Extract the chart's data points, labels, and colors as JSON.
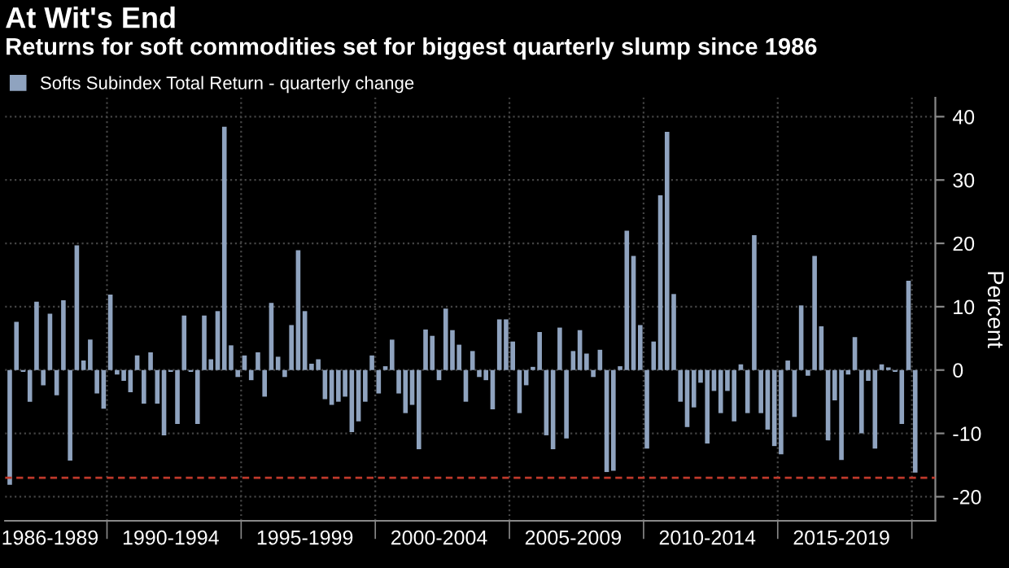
{
  "chart_data": {
    "type": "bar",
    "title": "At Wit's End",
    "subtitle": "Returns for soft commodities set for biggest quarterly slump since 1986",
    "ylabel": "Percent",
    "categories": [
      null,
      null,
      null,
      null,
      null,
      null,
      "1986-1989",
      null,
      null,
      null,
      null,
      null,
      null,
      null,
      null,
      null,
      null,
      null,
      null,
      null,
      null,
      null,
      null,
      null,
      "1990-1994",
      null,
      null,
      null,
      null,
      null,
      null,
      null,
      null,
      null,
      null,
      null,
      null,
      null,
      null,
      null,
      null,
      null,
      null,
      null,
      "1995-1999",
      null,
      null,
      null,
      null,
      null,
      null,
      null,
      null,
      null,
      null,
      null,
      null,
      null,
      null,
      null,
      null,
      null,
      null,
      null,
      "2000-2004",
      null,
      null,
      null,
      null,
      null,
      null,
      null,
      null,
      null,
      null,
      null,
      null,
      null,
      null,
      null,
      null,
      null,
      null,
      null,
      "2005-2009",
      null,
      null,
      null,
      null,
      null,
      null,
      null,
      null,
      null,
      null,
      null,
      null,
      null,
      null,
      null,
      null,
      null,
      null,
      null,
      "2010-2014",
      null,
      null,
      null,
      null,
      null,
      null,
      null,
      null,
      null,
      null,
      null,
      null,
      null,
      null,
      null,
      null,
      null,
      null,
      null,
      "2015-2019",
      null,
      null,
      null,
      null,
      null,
      null,
      null,
      null,
      null,
      null,
      null
    ],
    "series": [
      {
        "name": "Softs Subindex Total Return - quarterly change",
        "color": "#8fa3bf",
        "values": [
          -18.1,
          7.6,
          -0.3,
          -5,
          10.8,
          -2.4,
          8.9,
          -4,
          11,
          -14.3,
          19.7,
          1.5,
          4.8,
          -3.7,
          -6.1,
          11.9,
          -0.7,
          -1.7,
          -3.5,
          2.3,
          -5.3,
          2.8,
          -5.3,
          -10.3,
          -0.3,
          -8.5,
          8.6,
          -0.3,
          -8.5,
          8.6,
          1.7,
          9.3,
          38.4,
          3.9,
          -1.1,
          2.3,
          -1.6,
          2.8,
          -4.2,
          10.6,
          2.1,
          -1.1,
          7.1,
          18.9,
          9.3,
          1.0,
          1.7,
          -4.6,
          -5.5,
          -5,
          -4.2,
          -9.8,
          -8.1,
          -5,
          2.3,
          -3.7,
          0.6,
          4.8,
          -3.7,
          -6.8,
          -5.5,
          -12.5,
          6.4,
          5.4,
          -1.6,
          9.7,
          6.3,
          4,
          -5,
          3,
          -1.1,
          -1.6,
          -6.2,
          8.0,
          8.0,
          4.5,
          -6.8,
          -2.4,
          0.5,
          6,
          -10.3,
          -12.5,
          6.7,
          -10.8,
          3,
          6.3,
          2.6,
          -1.1,
          3.2,
          -16.1,
          -15.9,
          0.6,
          22,
          18,
          7.1,
          -12.4,
          4.5,
          27.6,
          37.6,
          12,
          -5,
          -9,
          -5.9,
          -2,
          -11.6,
          -3.3,
          -6.8,
          -3.3,
          -8.1,
          0.9,
          -6.8,
          21.3,
          -6.8,
          -9.4,
          -12,
          -13.3,
          1.5,
          -7.4,
          10.2,
          -0.9,
          18,
          6.9,
          -11.1,
          -4.8,
          -14.2,
          -0.7,
          5.2,
          -10,
          -1.7,
          -12.4,
          0.9,
          0.4,
          -0.3,
          -8.5,
          14.1,
          -16.2
        ]
      }
    ],
    "ylim": [
      -23.8,
      43
    ],
    "yticks": [
      -20,
      -10,
      0,
      10,
      20,
      30,
      40
    ],
    "ref_lines": [
      {
        "axis": "y",
        "value": -17,
        "color": "#c0392b",
        "line_style": "dashed"
      }
    ],
    "grid": true,
    "legend": "top left"
  }
}
